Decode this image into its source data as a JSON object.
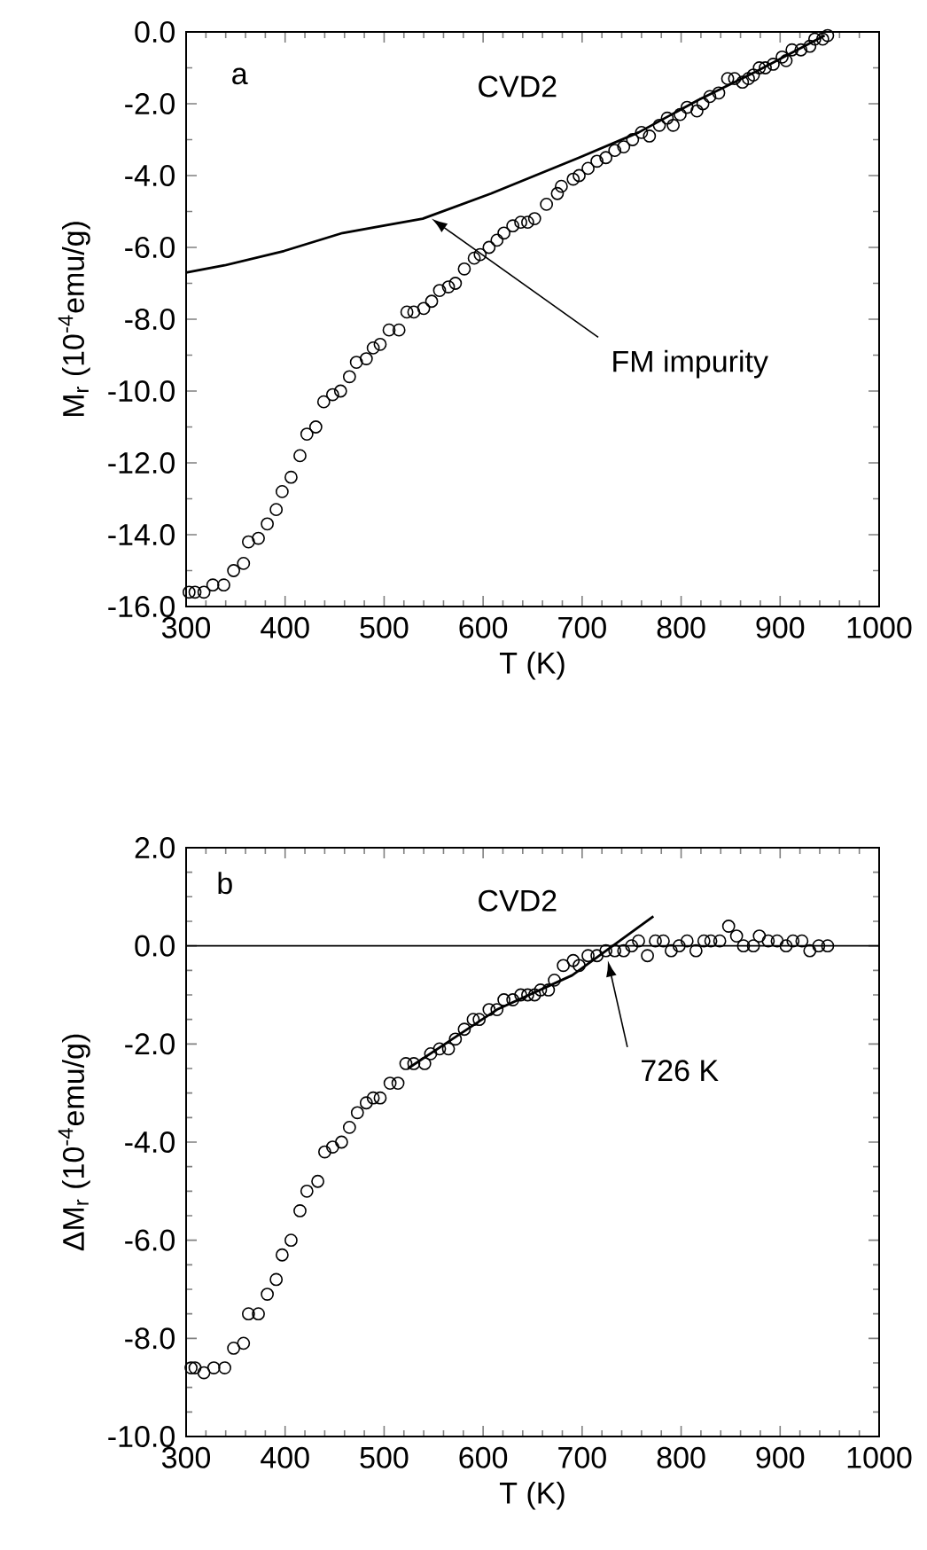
{
  "chart_data": [
    {
      "type": "scatter",
      "xlabel": "T (K)",
      "ylabel": "M$_{r}$ (10$^{-4}$emu/g)",
      "xlim": [
        300,
        1000
      ],
      "ylim": [
        -16,
        0
      ],
      "xticks": [
        300,
        400,
        500,
        600,
        700,
        800,
        900,
        1000
      ],
      "yticks": [
        {
          "value": 0,
          "label": "0.0"
        },
        {
          "value": -2,
          "label": "-2.0"
        },
        {
          "value": -4,
          "label": "-4.0"
        },
        {
          "value": -6,
          "label": "-6.0"
        },
        {
          "value": -8,
          "label": "-8.0"
        },
        {
          "value": -10,
          "label": "-10.0"
        },
        {
          "value": -12,
          "label": "-12.0"
        },
        {
          "value": -14,
          "label": "-14.0"
        },
        {
          "value": -16,
          "label": "-16.0"
        }
      ],
      "series": [
        {
          "marker": "circle",
          "color": "#000000",
          "x": [
            303,
            309,
            318,
            327,
            338,
            348,
            358,
            363,
            373,
            382,
            391,
            397,
            406,
            415,
            422,
            431,
            439,
            448,
            456,
            465,
            472,
            482,
            489,
            496,
            505,
            515,
            523,
            530,
            540,
            548,
            556,
            565,
            572,
            581,
            591,
            597,
            606,
            614,
            621,
            630,
            638,
            645,
            652,
            664,
            675,
            679,
            691,
            697,
            706,
            715,
            724,
            733,
            742,
            751,
            760,
            768,
            778,
            786,
            792,
            799,
            806,
            816,
            822,
            829,
            838,
            847,
            854,
            862,
            868,
            873,
            879,
            885,
            893,
            902,
            906,
            912,
            921,
            930,
            935,
            943,
            948
          ],
          "values": [
            -15.6,
            -15.6,
            -15.6,
            -15.4,
            -15.4,
            -15.0,
            -14.8,
            -14.2,
            -14.1,
            -13.7,
            -13.3,
            -12.8,
            -12.4,
            -11.8,
            -11.2,
            -11.0,
            -10.3,
            -10.1,
            -10.0,
            -9.6,
            -9.2,
            -9.1,
            -8.8,
            -8.7,
            -8.3,
            -8.3,
            -7.8,
            -7.8,
            -7.7,
            -7.5,
            -7.2,
            -7.1,
            -7.0,
            -6.6,
            -6.3,
            -6.2,
            -6.0,
            -5.8,
            -5.6,
            -5.4,
            -5.3,
            -5.3,
            -5.2,
            -4.8,
            -4.5,
            -4.3,
            -4.1,
            -4.0,
            -3.8,
            -3.6,
            -3.5,
            -3.3,
            -3.2,
            -3.0,
            -2.8,
            -2.9,
            -2.6,
            -2.4,
            -2.6,
            -2.3,
            -2.1,
            -2.2,
            -2.0,
            -1.8,
            -1.7,
            -1.3,
            -1.3,
            -1.4,
            -1.3,
            -1.2,
            -1.0,
            -1.0,
            -0.9,
            -0.7,
            -0.8,
            -0.5,
            -0.5,
            -0.4,
            -0.2,
            -0.2,
            -0.1
          ]
        },
        {
          "type": "line",
          "color": "#000000",
          "x": [
            300,
            339,
            399,
            458,
            539,
            608,
            697,
            757,
            817,
            876,
            945
          ],
          "values": [
            -6.7,
            -6.5,
            -6.1,
            -5.6,
            -5.2,
            -4.5,
            -3.5,
            -2.8,
            -1.9,
            -1.1,
            -0.1
          ]
        }
      ],
      "annotations": [
        "a",
        "CVD2",
        {
          "text": "FM impurity",
          "x": 548,
          "y": -5.2
        }
      ]
    },
    {
      "type": "scatter",
      "xlabel": "T (K)",
      "ylabel": "ΔM$_{r}$ (10$^{-4}$emu/g)",
      "xlim": [
        300,
        1000
      ],
      "ylim": [
        -10,
        2
      ],
      "xticks": [
        300,
        400,
        500,
        600,
        700,
        800,
        900,
        1000
      ],
      "yticks": [
        {
          "value": 2,
          "label": "2.0"
        },
        {
          "value": 0,
          "label": "0.0"
        },
        {
          "value": -2,
          "label": "-2.0"
        },
        {
          "value": -4,
          "label": "-4.0"
        },
        {
          "value": -6,
          "label": "-6.0"
        },
        {
          "value": -8,
          "label": "-8.0"
        },
        {
          "value": -10,
          "label": "-10.0"
        }
      ],
      "series": [
        {
          "marker": "circle",
          "color": "#000000",
          "x": [
            305,
            309,
            318,
            328,
            339,
            348,
            358,
            363,
            373,
            382,
            391,
            397,
            406,
            415,
            422,
            433,
            440,
            448,
            457,
            465,
            473,
            482,
            489,
            496,
            506,
            514,
            522,
            530,
            541,
            547,
            556,
            565,
            572,
            581,
            590,
            596,
            606,
            614,
            621,
            630,
            638,
            645,
            652,
            658,
            666,
            672,
            681,
            691,
            697,
            706,
            715,
            724,
            733,
            742,
            750,
            757,
            766,
            774,
            782,
            790,
            798,
            806,
            815,
            823,
            830,
            839,
            848,
            856,
            863,
            873,
            879,
            888,
            897,
            906,
            913,
            922,
            930,
            939,
            948
          ],
          "values": [
            -8.6,
            -8.6,
            -8.7,
            -8.6,
            -8.6,
            -8.2,
            -8.1,
            -7.5,
            -7.5,
            -7.1,
            -6.8,
            -6.3,
            -6.0,
            -5.4,
            -5.0,
            -4.8,
            -4.2,
            -4.1,
            -4.0,
            -3.7,
            -3.4,
            -3.2,
            -3.1,
            -3.1,
            -2.8,
            -2.8,
            -2.4,
            -2.4,
            -2.4,
            -2.2,
            -2.1,
            -2.1,
            -1.9,
            -1.7,
            -1.5,
            -1.5,
            -1.3,
            -1.3,
            -1.1,
            -1.1,
            -1.0,
            -1.0,
            -1.0,
            -0.9,
            -0.9,
            -0.7,
            -0.4,
            -0.3,
            -0.4,
            -0.2,
            -0.2,
            -0.1,
            -0.1,
            -0.1,
            0.0,
            0.1,
            -0.2,
            0.1,
            0.1,
            -0.1,
            0.0,
            0.1,
            -0.1,
            0.1,
            0.1,
            0.1,
            0.4,
            0.2,
            0.0,
            0.0,
            0.2,
            0.1,
            0.1,
            0.0,
            0.1,
            0.1,
            -0.1,
            0.0,
            0.0
          ]
        },
        {
          "type": "line",
          "color": "#000000",
          "x": [
            524,
            614,
            690,
            772
          ],
          "values": [
            -2.5,
            -1.3,
            -0.6,
            0.6
          ]
        }
      ],
      "ref_lines": [
        {
          "axis": "y",
          "value": 0,
          "color": "#000000"
        }
      ],
      "annotations": [
        "b",
        "CVD2",
        {
          "text": "726 K",
          "x": 726,
          "y": -0.3
        }
      ]
    }
  ]
}
